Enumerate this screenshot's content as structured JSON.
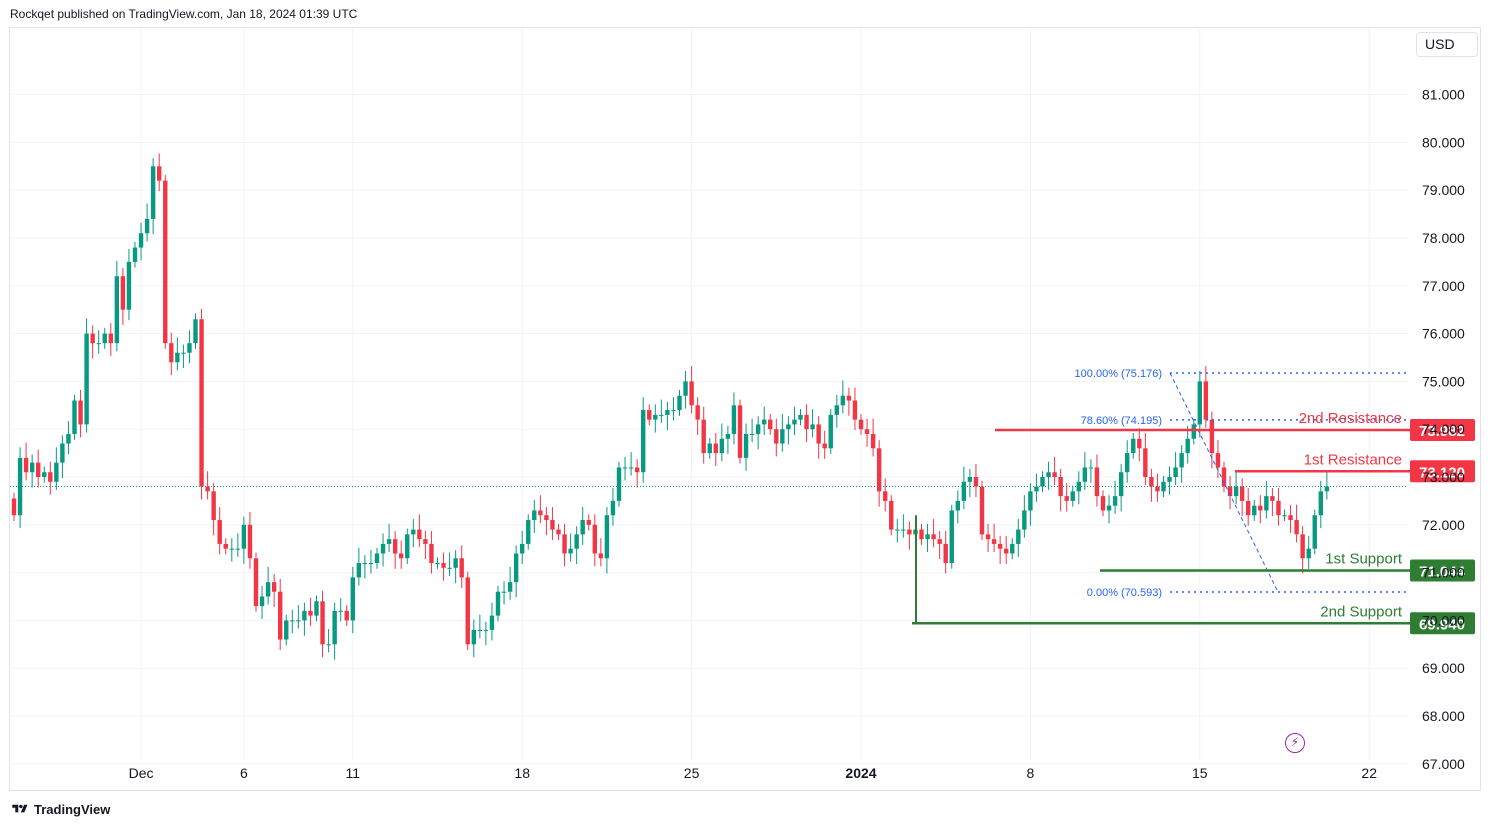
{
  "header": {
    "publish_text": "Rockqet published on TradingView.com, Jan 18, 2024 01:39 UTC"
  },
  "toolbar": {
    "currency": "USD"
  },
  "footer": {
    "brand": "TradingView"
  },
  "icons": {
    "logo": "tradingview-logo-icon",
    "bolt": "lightning-icon"
  },
  "colors": {
    "up": "#089981",
    "down": "#f23645",
    "support": "#2e7d32",
    "resistance": "#f23645",
    "fib": "#2962ff",
    "grid": "#f0f3fa"
  },
  "chart_data": {
    "type": "candlestick",
    "y_axis": {
      "range": [
        66.7,
        81.4
      ],
      "ticks": [
        "81.000",
        "80.000",
        "79.000",
        "78.000",
        "77.000",
        "76.000",
        "75.000",
        "74.000",
        "73.000",
        "72.000",
        "71.000",
        "70.000",
        "69.000",
        "68.000",
        "67.000"
      ]
    },
    "x_axis": {
      "labels": [
        {
          "text": "Dec",
          "bar": 21,
          "bold": false
        },
        {
          "text": "6",
          "bar": 38,
          "bold": false
        },
        {
          "text": "11",
          "bar": 56,
          "bold": false
        },
        {
          "text": "18",
          "bar": 84,
          "bold": false
        },
        {
          "text": "25",
          "bar": 112,
          "bold": false
        },
        {
          "text": "2024",
          "bar": 140,
          "bold": true
        },
        {
          "text": "8",
          "bar": 168,
          "bold": false
        },
        {
          "text": "15",
          "bar": 196,
          "bold": false
        },
        {
          "text": "22",
          "bar": 224,
          "bold": false
        }
      ]
    },
    "candles_close": [
      72.2,
      73.4,
      73.1,
      73.3,
      73.0,
      73.1,
      72.9,
      73.3,
      73.7,
      73.9,
      74.6,
      74.1,
      76.0,
      75.8,
      75.8,
      76.0,
      75.8,
      77.2,
      76.5,
      77.5,
      77.8,
      78.1,
      78.4,
      79.5,
      79.2,
      75.8,
      75.4,
      75.6,
      75.6,
      75.8,
      76.3,
      72.8,
      72.7,
      72.1,
      71.6,
      71.5,
      71.5,
      71.5,
      72.0,
      71.3,
      70.3,
      70.5,
      70.8,
      70.6,
      69.6,
      70.0,
      70.0,
      70.0,
      70.2,
      70.1,
      70.4,
      69.5,
      69.5,
      70.2,
      70.2,
      70.0,
      70.9,
      71.2,
      71.2,
      71.2,
      71.4,
      71.6,
      71.7,
      71.4,
      71.3,
      71.8,
      71.9,
      71.7,
      71.6,
      71.2,
      71.2,
      71.1,
      71.1,
      71.3,
      70.9,
      69.5,
      69.8,
      69.8,
      69.8,
      70.1,
      70.6,
      70.6,
      70.8,
      71.4,
      71.6,
      72.1,
      72.3,
      72.2,
      72.1,
      71.9,
      71.8,
      71.4,
      71.5,
      71.8,
      72.1,
      72.0,
      71.4,
      71.3,
      72.2,
      72.5,
      73.2,
      73.2,
      73.2,
      73.1,
      74.4,
      74.2,
      74.3,
      74.3,
      74.4,
      74.4,
      74.7,
      75.0,
      74.5,
      74.2,
      73.5,
      73.7,
      73.5,
      73.8,
      73.9,
      74.5,
      73.4,
      73.9,
      73.9,
      74.1,
      74.2,
      74.0,
      73.7,
      74.0,
      74.1,
      74.2,
      74.3,
      74.0,
      74.1,
      73.7,
      73.6,
      74.3,
      74.5,
      74.7,
      74.6,
      74.2,
      74.0,
      73.9,
      73.6,
      72.7,
      72.5,
      71.9,
      71.9,
      71.9,
      71.8,
      71.9,
      71.7,
      71.8,
      71.7,
      71.6,
      71.2,
      72.3,
      72.5,
      72.9,
      73.0,
      72.8,
      71.8,
      71.7,
      71.6,
      71.5,
      71.4,
      71.6,
      71.9,
      72.3,
      72.7,
      72.8,
      73.0,
      73.1,
      73.0,
      72.6,
      72.5,
      72.7,
      72.9,
      73.2,
      73.2,
      72.6,
      72.3,
      72.4,
      72.6,
      73.1,
      73.5,
      73.8,
      73.6,
      73.0,
      72.8,
      72.7,
      72.9,
      73.0,
      73.2,
      73.5,
      73.8,
      74.1,
      75.0,
      74.2,
      73.5,
      73.2,
      72.8,
      72.6,
      72.8,
      72.5,
      72.2,
      72.4,
      72.3,
      72.6,
      72.5,
      72.2,
      72.2,
      72.1,
      71.8,
      71.3,
      71.5,
      72.2,
      72.7,
      72.8
    ]
  },
  "annotations": {
    "fib_levels": [
      {
        "label": "100.00% (75.176)",
        "value": 75.176
      },
      {
        "label": "78.60% (74.195)",
        "value": 74.195
      },
      {
        "label": "0.00% (70.593)",
        "value": 70.593
      }
    ],
    "levels": [
      {
        "name": "2nd Resistance",
        "value": 73.982,
        "badge": "73.982",
        "kind": "resistance"
      },
      {
        "name": "1st Resistance",
        "value": 73.12,
        "badge": "73.120",
        "kind": "resistance"
      },
      {
        "name": "1st Support",
        "value": 71.044,
        "badge": "71.044",
        "kind": "support"
      },
      {
        "name": "2nd Support",
        "value": 69.94,
        "badge": "69.940",
        "kind": "support"
      }
    ]
  }
}
